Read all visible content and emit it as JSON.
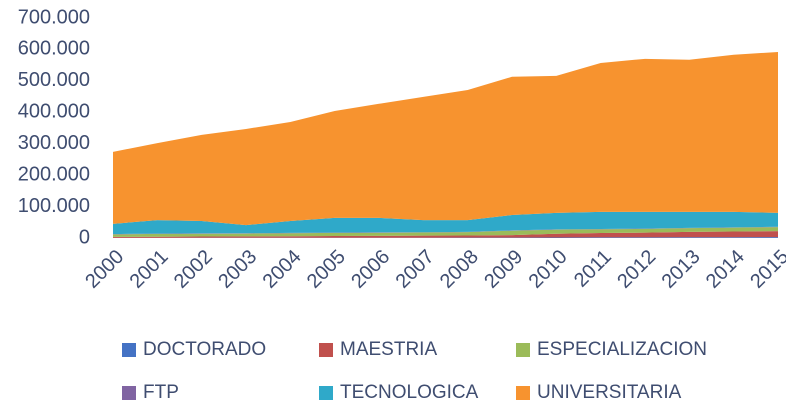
{
  "chart_data": {
    "type": "stacked_area",
    "categories": [
      "2000",
      "2001",
      "2002",
      "2003",
      "2004",
      "2005",
      "2006",
      "2007",
      "2008",
      "2009",
      "2010",
      "2011",
      "2012",
      "2013",
      "2014",
      "2015"
    ],
    "series": [
      {
        "name": "DOCTORADO",
        "color": "#4472c4",
        "values": [
          500,
          500,
          600,
          600,
          700,
          700,
          800,
          900,
          1000,
          1200,
          1500,
          1800,
          2000,
          2300,
          2500,
          2800
        ]
      },
      {
        "name": "MAESTRIA",
        "color": "#c0504d",
        "values": [
          3000,
          3500,
          4000,
          4500,
          5000,
          5500,
          6000,
          6500,
          7000,
          8000,
          12000,
          14000,
          15000,
          17000,
          18000,
          19000
        ]
      },
      {
        "name": "ESPECIALIZACION",
        "color": "#9bbb59",
        "values": [
          8000,
          9000,
          9000,
          9000,
          9500,
          10000,
          10000,
          10000,
          10500,
          14000,
          13000,
          12000,
          12000,
          12000,
          12500,
          13000
        ]
      },
      {
        "name": "FTP",
        "color": "#8064a2",
        "values": [
          1000,
          1000,
          1000,
          1000,
          1000,
          1000,
          1000,
          1000,
          1000,
          1000,
          1000,
          1000,
          1000,
          1000,
          1000,
          1000
        ]
      },
      {
        "name": "TECNOLOGICA",
        "color": "#2fa9c9",
        "values": [
          32500,
          43000,
          39400,
          25900,
          37800,
          46800,
          46200,
          38600,
          37500,
          48800,
          52500,
          54200,
          53000,
          50700,
          49000,
          44200
        ]
      },
      {
        "name": "UNIVERSITARIA",
        "color": "#f7932f",
        "values": [
          229000,
          245000,
          274000,
          306000,
          315000,
          340000,
          363000,
          392000,
          414000,
          440000,
          436000,
          474000,
          487000,
          484000,
          500000,
          512000
        ]
      }
    ],
    "ylim": [
      0,
      700000
    ],
    "yticks": [
      0,
      {
        "value": 100000,
        "label": "100.000"
      },
      {
        "value": 200000,
        "label": "200.000"
      },
      {
        "value": 300000,
        "label": "300.000"
      },
      {
        "value": 400000,
        "label": "400.000"
      },
      {
        "value": 500000,
        "label": "500.000"
      },
      {
        "value": 600000,
        "label": "600.000"
      },
      {
        "value": 700000,
        "label": "700.000"
      }
    ],
    "grid": false,
    "legend": "bottom"
  }
}
